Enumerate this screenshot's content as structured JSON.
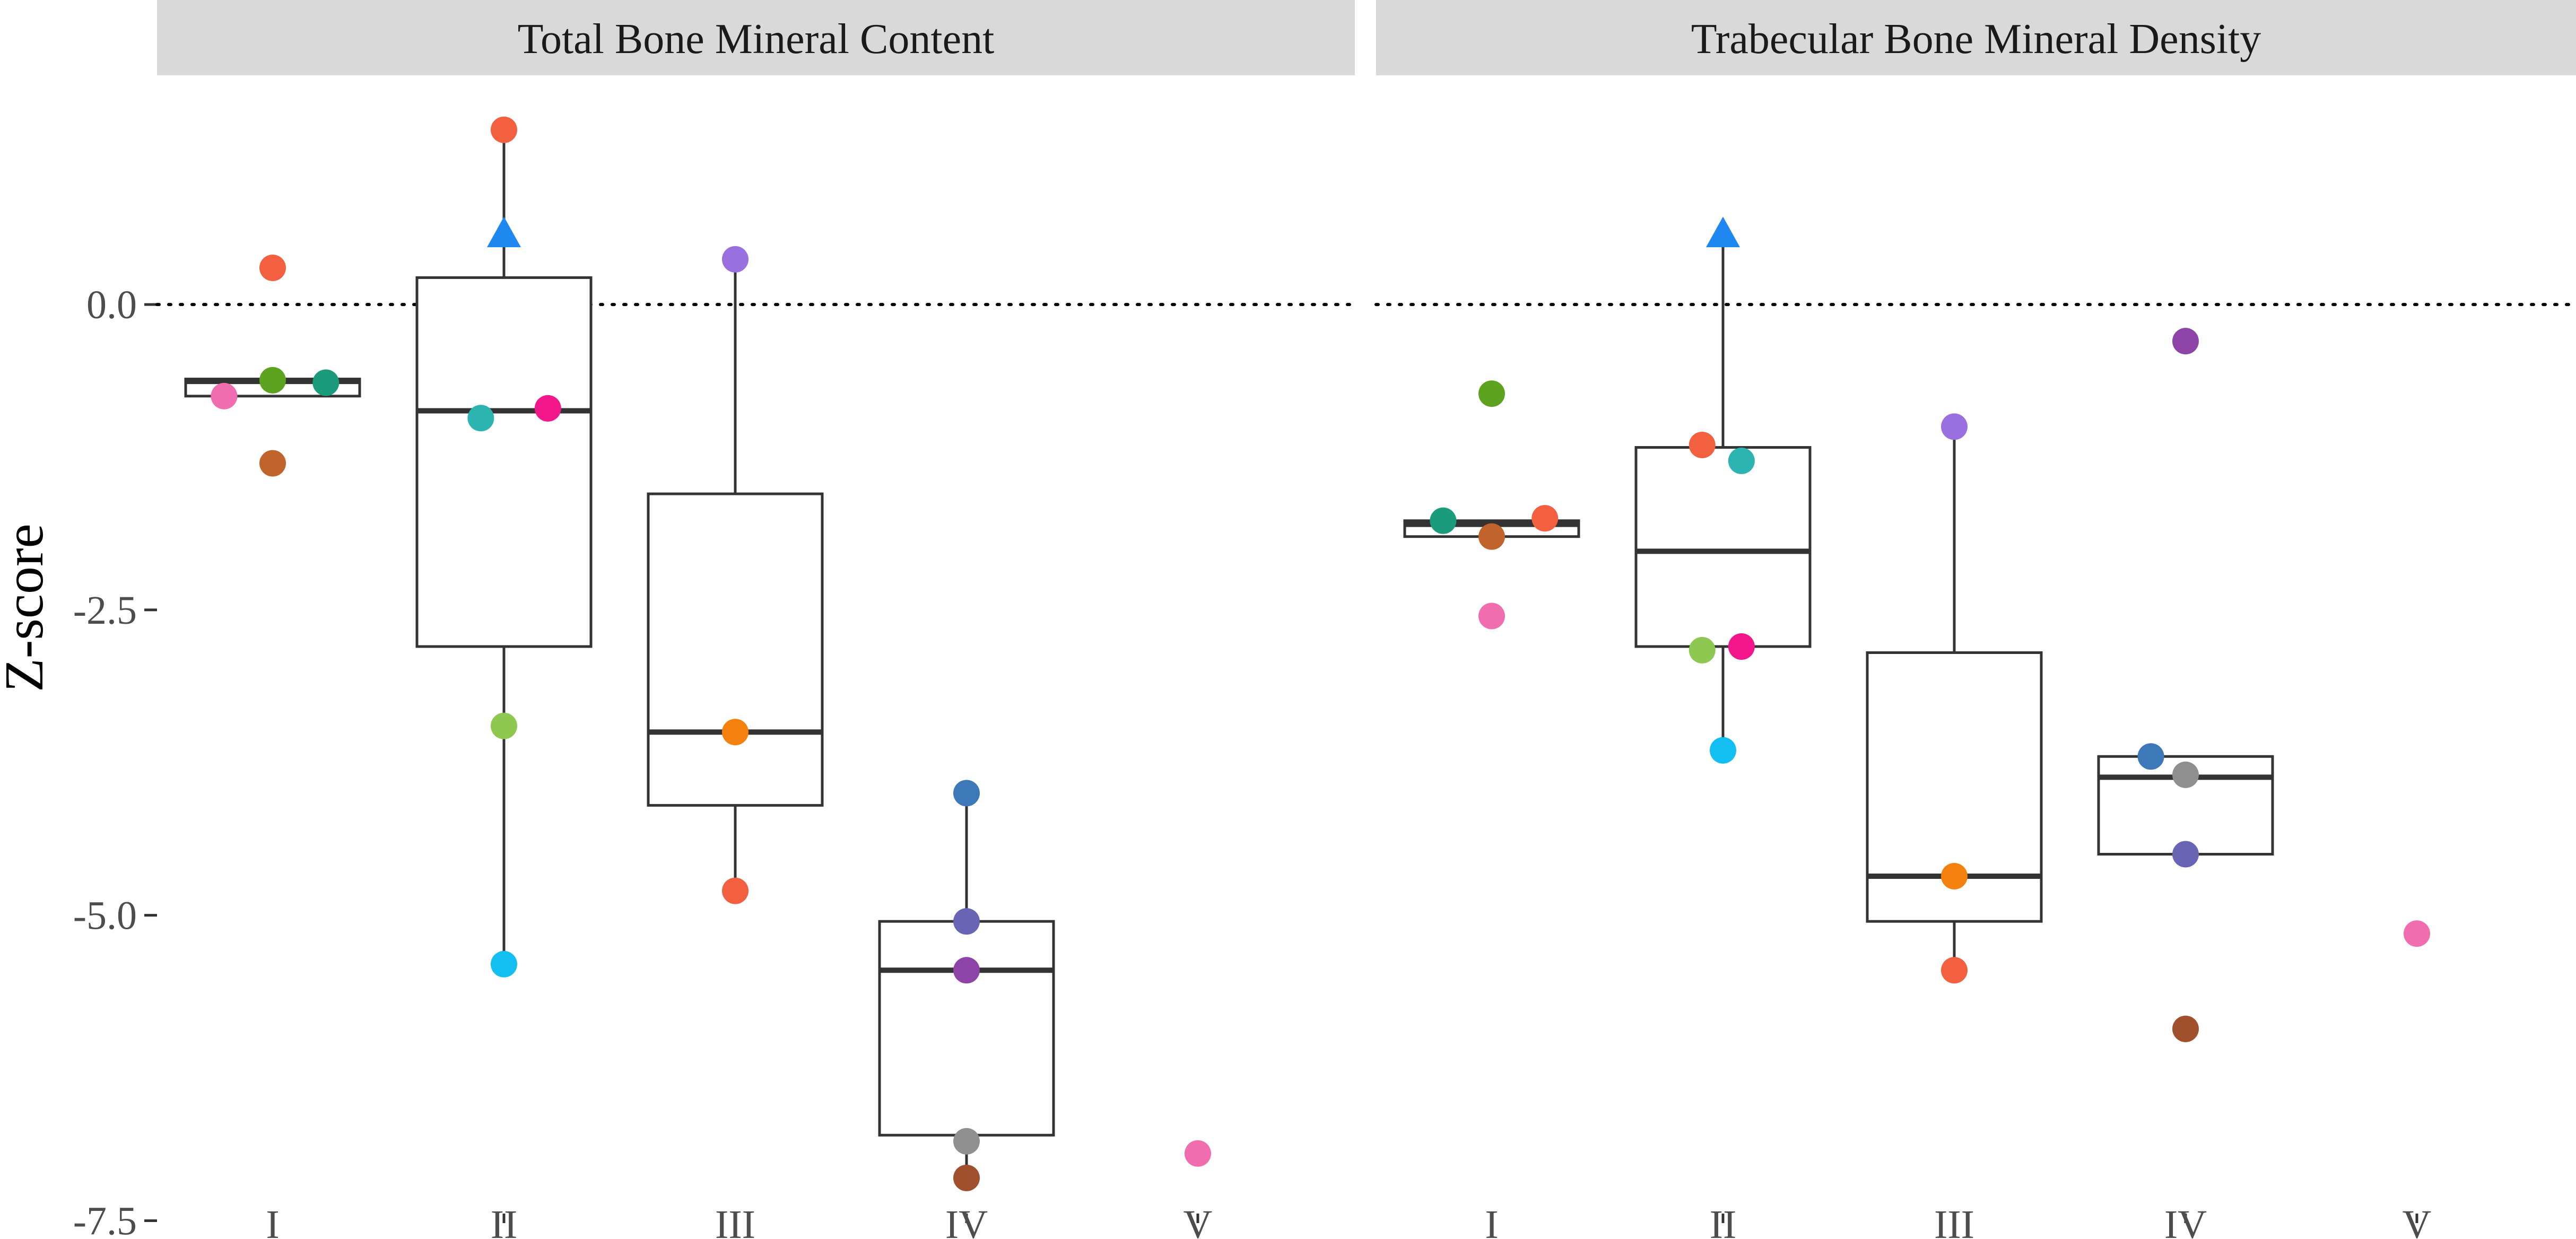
{
  "chart_data": {
    "type": "boxplot",
    "ylabel": "Z-score",
    "xlabel": "",
    "ylim": [
      -7.65,
      1.85
    ],
    "yticks": [
      0.0,
      -2.5,
      -5.0,
      -7.5
    ],
    "ytick_labels": [
      "0.0",
      "-2.5",
      "-5.0",
      "-7.5"
    ],
    "reference_line": {
      "y": 0,
      "style": "dotted"
    },
    "categories": [
      "I",
      "II",
      "III",
      "IV",
      "V"
    ],
    "panels": [
      {
        "title": "Total Bone Mineral Content",
        "boxes": [
          {
            "category": "I",
            "q1": -0.75,
            "median": -0.63,
            "q3": -0.61,
            "whisker_low": -0.75,
            "whisker_high": -0.61
          },
          {
            "category": "II",
            "q1": -2.8,
            "median": -0.87,
            "q3": 0.22,
            "whisker_low": -5.4,
            "whisker_high": 1.4
          },
          {
            "category": "III",
            "q1": -4.1,
            "median": -3.5,
            "q3": -1.55,
            "whisker_low": -4.8,
            "whisker_high": 0.37
          },
          {
            "category": "IV",
            "q1": -6.8,
            "median": -5.45,
            "q3": -5.05,
            "whisker_low": -7.15,
            "whisker_high": -4.0
          }
        ],
        "points": [
          {
            "category": "I",
            "offset": 0.0,
            "value": 0.3,
            "color": "#f2603f",
            "shape": "circle"
          },
          {
            "category": "I",
            "offset": -0.21,
            "value": -0.75,
            "color": "#f06eb0",
            "shape": "circle"
          },
          {
            "category": "I",
            "offset": 0.0,
            "value": -0.62,
            "color": "#5ea31f",
            "shape": "circle"
          },
          {
            "category": "I",
            "offset": 0.23,
            "value": -0.64,
            "color": "#1a9b7c",
            "shape": "circle"
          },
          {
            "category": "I",
            "offset": 0.0,
            "value": -1.3,
            "color": "#c0642b",
            "shape": "circle"
          },
          {
            "category": "II",
            "offset": 0.0,
            "value": 1.43,
            "color": "#f2603f",
            "shape": "circle"
          },
          {
            "category": "II",
            "offset": 0.0,
            "value": 0.58,
            "color": "#1e88f0",
            "shape": "triangle"
          },
          {
            "category": "II",
            "offset": -0.1,
            "value": -0.93,
            "color": "#2bb4b0",
            "shape": "circle"
          },
          {
            "category": "II",
            "offset": 0.19,
            "value": -0.85,
            "color": "#f2168a",
            "shape": "circle"
          },
          {
            "category": "II",
            "offset": 0.0,
            "value": -3.45,
            "color": "#8ec850",
            "shape": "circle"
          },
          {
            "category": "II",
            "offset": 0.0,
            "value": -5.4,
            "color": "#13bff0",
            "shape": "circle"
          },
          {
            "category": "III",
            "offset": 0.0,
            "value": 0.37,
            "color": "#9a70e0",
            "shape": "circle"
          },
          {
            "category": "III",
            "offset": 0.0,
            "value": -3.5,
            "color": "#f4800e",
            "shape": "circle"
          },
          {
            "category": "III",
            "offset": 0.0,
            "value": -4.8,
            "color": "#f2603f",
            "shape": "circle"
          },
          {
            "category": "IV",
            "offset": 0.0,
            "value": -4.0,
            "color": "#3d78b8",
            "shape": "circle"
          },
          {
            "category": "IV",
            "offset": 0.0,
            "value": -5.05,
            "color": "#6a64b4",
            "shape": "circle"
          },
          {
            "category": "IV",
            "offset": 0.0,
            "value": -5.45,
            "color": "#8e44a6",
            "shape": "circle"
          },
          {
            "category": "IV",
            "offset": 0.0,
            "value": -6.85,
            "color": "#8f8f8f",
            "shape": "circle"
          },
          {
            "category": "IV",
            "offset": 0.0,
            "value": -7.15,
            "color": "#a0502c",
            "shape": "circle"
          },
          {
            "category": "V",
            "offset": 0.0,
            "value": -6.95,
            "color": "#f06eb0",
            "shape": "circle"
          }
        ]
      },
      {
        "title": "Trabecular Bone Mineral Density",
        "boxes": [
          {
            "category": "I",
            "q1": -1.9,
            "median": -1.8,
            "q3": -1.77,
            "whisker_low": -1.9,
            "whisker_high": -1.77
          },
          {
            "category": "II",
            "q1": -2.8,
            "median": -2.02,
            "q3": -1.17,
            "whisker_low": -3.65,
            "whisker_high": 0.58
          },
          {
            "category": "III",
            "q1": -5.05,
            "median": -4.68,
            "q3": -2.85,
            "whisker_low": -5.45,
            "whisker_high": -1.0
          },
          {
            "category": "IV",
            "q1": -4.5,
            "median": -3.87,
            "q3": -3.7,
            "whisker_low": -4.5,
            "whisker_high": -3.7
          }
        ],
        "points": [
          {
            "category": "I",
            "offset": 0.0,
            "value": -0.73,
            "color": "#5ea31f",
            "shape": "circle"
          },
          {
            "category": "I",
            "offset": -0.21,
            "value": -1.77,
            "color": "#1a9b7c",
            "shape": "circle"
          },
          {
            "category": "I",
            "offset": 0.23,
            "value": -1.75,
            "color": "#f2603f",
            "shape": "circle"
          },
          {
            "category": "I",
            "offset": 0.0,
            "value": -1.9,
            "color": "#c0642b",
            "shape": "circle"
          },
          {
            "category": "I",
            "offset": 0.0,
            "value": -2.55,
            "color": "#f06eb0",
            "shape": "circle"
          },
          {
            "category": "II",
            "offset": 0.0,
            "value": 0.58,
            "color": "#1e88f0",
            "shape": "triangle"
          },
          {
            "category": "II",
            "offset": -0.09,
            "value": -1.15,
            "color": "#f2603f",
            "shape": "circle"
          },
          {
            "category": "II",
            "offset": 0.08,
            "value": -1.28,
            "color": "#2bb4b0",
            "shape": "circle"
          },
          {
            "category": "II",
            "offset": -0.09,
            "value": -2.83,
            "color": "#8ec850",
            "shape": "circle"
          },
          {
            "category": "II",
            "offset": 0.08,
            "value": -2.8,
            "color": "#f2168a",
            "shape": "circle"
          },
          {
            "category": "II",
            "offset": 0.0,
            "value": -3.65,
            "color": "#13bff0",
            "shape": "circle"
          },
          {
            "category": "III",
            "offset": 0.0,
            "value": -1.0,
            "color": "#9a70e0",
            "shape": "circle"
          },
          {
            "category": "III",
            "offset": 0.0,
            "value": -4.68,
            "color": "#f4800e",
            "shape": "circle"
          },
          {
            "category": "III",
            "offset": 0.0,
            "value": -5.45,
            "color": "#f2603f",
            "shape": "circle"
          },
          {
            "category": "IV",
            "offset": 0.0,
            "value": -0.3,
            "color": "#8e44a6",
            "shape": "circle"
          },
          {
            "category": "IV",
            "offset": -0.15,
            "value": -3.7,
            "color": "#3d78b8",
            "shape": "circle"
          },
          {
            "category": "IV",
            "offset": 0.0,
            "value": -3.85,
            "color": "#8f8f8f",
            "shape": "circle"
          },
          {
            "category": "IV",
            "offset": 0.0,
            "value": -4.5,
            "color": "#6a64b4",
            "shape": "circle"
          },
          {
            "category": "IV",
            "offset": 0.0,
            "value": -5.93,
            "color": "#a0502c",
            "shape": "circle"
          },
          {
            "category": "V",
            "offset": 0.0,
            "value": -5.15,
            "color": "#f06eb0",
            "shape": "circle"
          }
        ]
      }
    ]
  }
}
